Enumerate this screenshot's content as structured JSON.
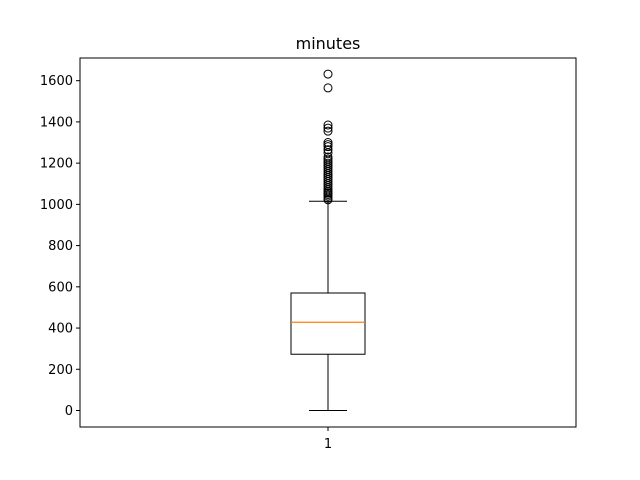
{
  "chart_data": {
    "type": "boxplot",
    "title": "minutes",
    "xlabel": "",
    "ylabel": "",
    "categories": [
      "1"
    ],
    "ylim": [
      -80,
      1710
    ],
    "yticks": [
      0,
      200,
      400,
      600,
      800,
      1000,
      1200,
      1400,
      1600
    ],
    "ytick_labels": [
      "0",
      "200",
      "400",
      "600",
      "800",
      "1000",
      "1200",
      "1400",
      "1600"
    ],
    "boxes": [
      {
        "category": "1",
        "whisker_low": 0,
        "q1": 273,
        "median": 428,
        "q3": 570,
        "whisker_high": 1015,
        "outliers": [
          1022,
          1030,
          1040,
          1048,
          1055,
          1062,
          1070,
          1080,
          1090,
          1100,
          1110,
          1120,
          1130,
          1140,
          1150,
          1160,
          1170,
          1180,
          1190,
          1200,
          1210,
          1220,
          1230,
          1250,
          1265,
          1280,
          1290,
          1300,
          1355,
          1370,
          1385,
          1565,
          1632
        ]
      }
    ],
    "grid": false,
    "colors": {
      "box": "#000000",
      "median": "#ff7f0e",
      "outlier_edge": "#000000"
    }
  }
}
